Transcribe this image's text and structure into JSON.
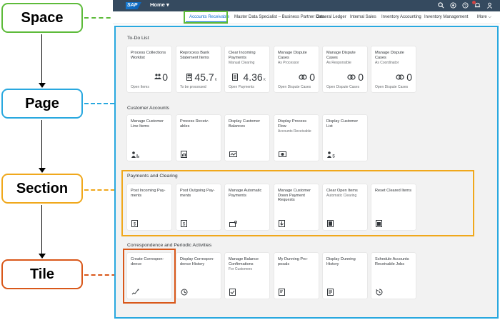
{
  "legend": {
    "space": "Space",
    "page": "Page",
    "section": "Section",
    "tile": "Tile"
  },
  "shell": {
    "logo": "SAP",
    "title": "Home",
    "title_caret": "▾"
  },
  "space_bar": {
    "tabs": [
      {
        "label": "Accounts Receivable",
        "active": true
      },
      {
        "label": "Master Data Specialist – Business Partner Data"
      },
      {
        "label": "General Ledger"
      },
      {
        "label": "Internal Sales"
      },
      {
        "label": "Inventory Accounting"
      },
      {
        "label": "Inventory Management"
      }
    ],
    "more": "More ⌵"
  },
  "sections": [
    {
      "title": "To-Do List",
      "tiles": [
        {
          "title": "Process Collections Worklist",
          "sub": "",
          "kpi_icon": "users-icon",
          "kpi": "0",
          "unit": "",
          "foot": "Open Items"
        },
        {
          "title": "Reprocess Bank Statement Items",
          "sub": "",
          "kpi_icon": "calculator-icon",
          "kpi": "45.7",
          "unit": "K",
          "foot": "To be processed"
        },
        {
          "title": "Clear Incoming Payments",
          "sub": "Manual Clearing",
          "kpi_icon": "document-icon",
          "kpi": "4.36",
          "unit": "K",
          "foot": "Open Payments"
        },
        {
          "title": "Manage Dispute Cases",
          "sub": "As Processor",
          "kpi_icon": "link-icon",
          "kpi": "0",
          "unit": "",
          "foot": "Open Dispute Cases"
        },
        {
          "title": "Manage Dispute Cases",
          "sub": "As Responsible",
          "kpi_icon": "link-icon",
          "kpi": "0",
          "unit": "",
          "foot": "Open Dispute Cases"
        },
        {
          "title": "Manage Dispute Cases",
          "sub": "As Coordinator",
          "kpi_icon": "link-icon",
          "kpi": "0",
          "unit": "",
          "foot": "Open Dispute Cases"
        }
      ]
    },
    {
      "title": "Customer Accounts",
      "tiles": [
        {
          "title": "Manage Customer Line Items",
          "sub": "",
          "icon": "customer-items-icon"
        },
        {
          "title": "Process Receiv-ables",
          "sub": "",
          "icon": "receivables-icon"
        },
        {
          "title": "Display Customer Balances",
          "sub": "",
          "icon": "balance-icon"
        },
        {
          "title": "Display Process Flow",
          "sub": "Accounts Receivable",
          "icon": "process-flow-icon"
        },
        {
          "title": "Display Customer List",
          "sub": "",
          "icon": "customer-list-icon"
        }
      ]
    },
    {
      "title": "Payments and Clearing",
      "tiles": [
        {
          "title": "Post Incoming Pay-ments",
          "sub": "",
          "icon": "incoming-payment-icon"
        },
        {
          "title": "Post Outgoing Pay-ments",
          "sub": "",
          "icon": "outgoing-payment-icon"
        },
        {
          "title": "Manage Automatic Payments",
          "sub": "",
          "icon": "automatic-payment-icon"
        },
        {
          "title": "Manage Customer Down Payment Requests",
          "sub": "",
          "icon": "down-payment-icon"
        },
        {
          "title": "Clear Open Items",
          "sub": "Automatic Clearing",
          "icon": "clear-items-icon"
        },
        {
          "title": "Reset Cleared Items",
          "sub": "",
          "icon": "reset-items-icon"
        }
      ]
    },
    {
      "title": "Correspondence and Periodic Activities",
      "tiles": [
        {
          "title": "Create Correspon-dence",
          "sub": "",
          "icon": "correspondence-icon"
        },
        {
          "title": "Display Correspon-dence History",
          "sub": "",
          "icon": "history-icon"
        },
        {
          "title": "Manage Balance Confirmations",
          "sub": "For Customers",
          "icon": "confirmation-icon"
        },
        {
          "title": "My Dunning Pro-posals",
          "sub": "",
          "icon": "dunning-icon"
        },
        {
          "title": "Display Dunning History",
          "sub": "",
          "icon": "dunning-history-icon"
        },
        {
          "title": "Schedule Accounts Receivable Jobs",
          "sub": "",
          "icon": "schedule-icon"
        }
      ]
    }
  ],
  "colors": {
    "space": "#5dbb3a",
    "page": "#29a8df",
    "section": "#f0a81c",
    "tile": "#d9581a",
    "shell": "#354a5f",
    "accent": "#0a6ed1"
  }
}
